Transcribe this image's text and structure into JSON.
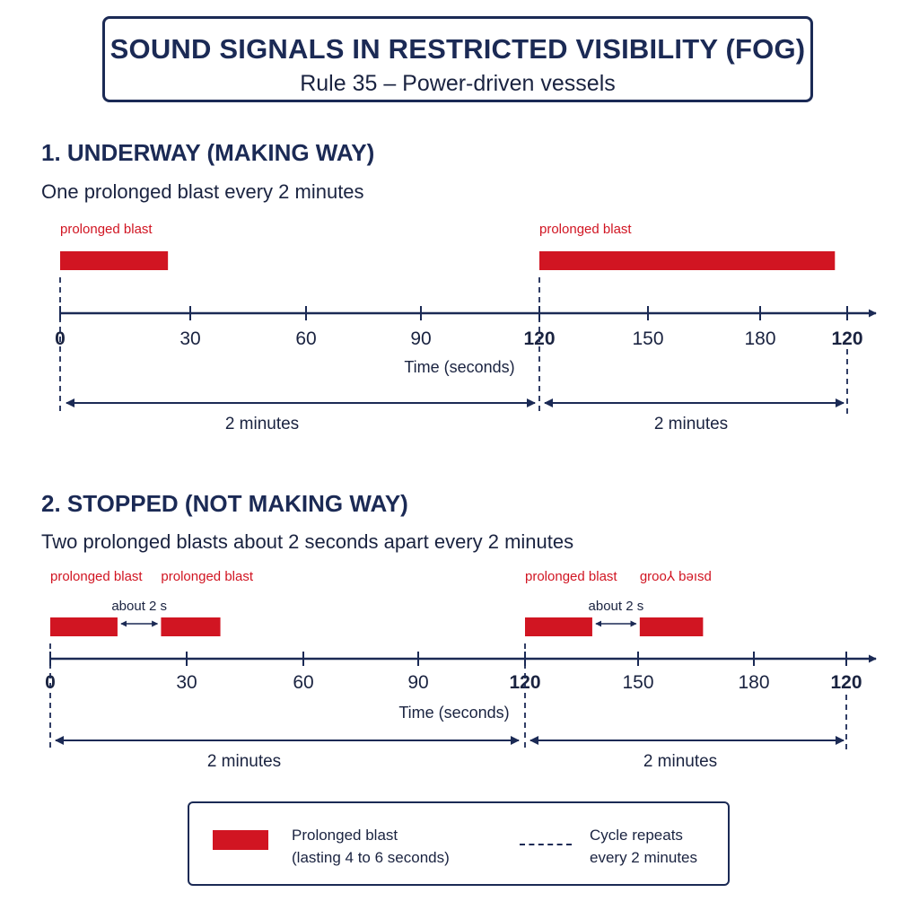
{
  "header": {
    "title": "SOUND SIGNALS IN RESTRICTED VISIBILITY (FOG)",
    "subtitle": "Rule 35 – Power-driven vessels"
  },
  "colors": {
    "blast": "#d11522",
    "ink": "#1b2a55",
    "text": "#1a2340"
  },
  "sections": [
    {
      "title": "1. UNDERWAY (MAKING WAY)",
      "description": "One prolonged blast every 2 minutes",
      "blasts": [
        {
          "label": "prolonged blast",
          "start": 0,
          "end": 27
        },
        {
          "label": "prolonged blast",
          "start": 120,
          "end": 194
        }
      ],
      "gap_labels": [],
      "ticks": [
        "0",
        "30",
        "60",
        "90",
        "120",
        "150",
        "180",
        "120"
      ],
      "axis_label": "Time (seconds)",
      "spans": [
        "2 minutes",
        "2 minutes"
      ]
    },
    {
      "title": "2. STOPPED (NOT MAKING WAY)",
      "description": "Two prolonged blasts about 2 seconds apart every 2 minutes",
      "blasts": [
        {
          "label": "prolonged blast",
          "start": 0,
          "end": 17
        },
        {
          "label": "prolonged blast",
          "start": 28,
          "end": 43
        },
        {
          "label": "prolonged blast",
          "start": 120,
          "end": 137
        },
        {
          "label": "groo⅄ bəısd",
          "start": 149,
          "end": 165
        }
      ],
      "gap_labels": [
        "about 2 s",
        "about 2 s"
      ],
      "ticks": [
        "0",
        "30",
        "60",
        "90",
        "120",
        "150",
        "180",
        "120"
      ],
      "axis_label": "Time (seconds)",
      "spans": [
        "2 minutes",
        "2 minutes"
      ]
    }
  ],
  "legend": {
    "blast_label": "Prolonged blast",
    "blast_note": "(lasting 4 to 6 seconds)",
    "cycle_label": "Cycle repeats",
    "cycle_note": "every 2 minutes"
  }
}
